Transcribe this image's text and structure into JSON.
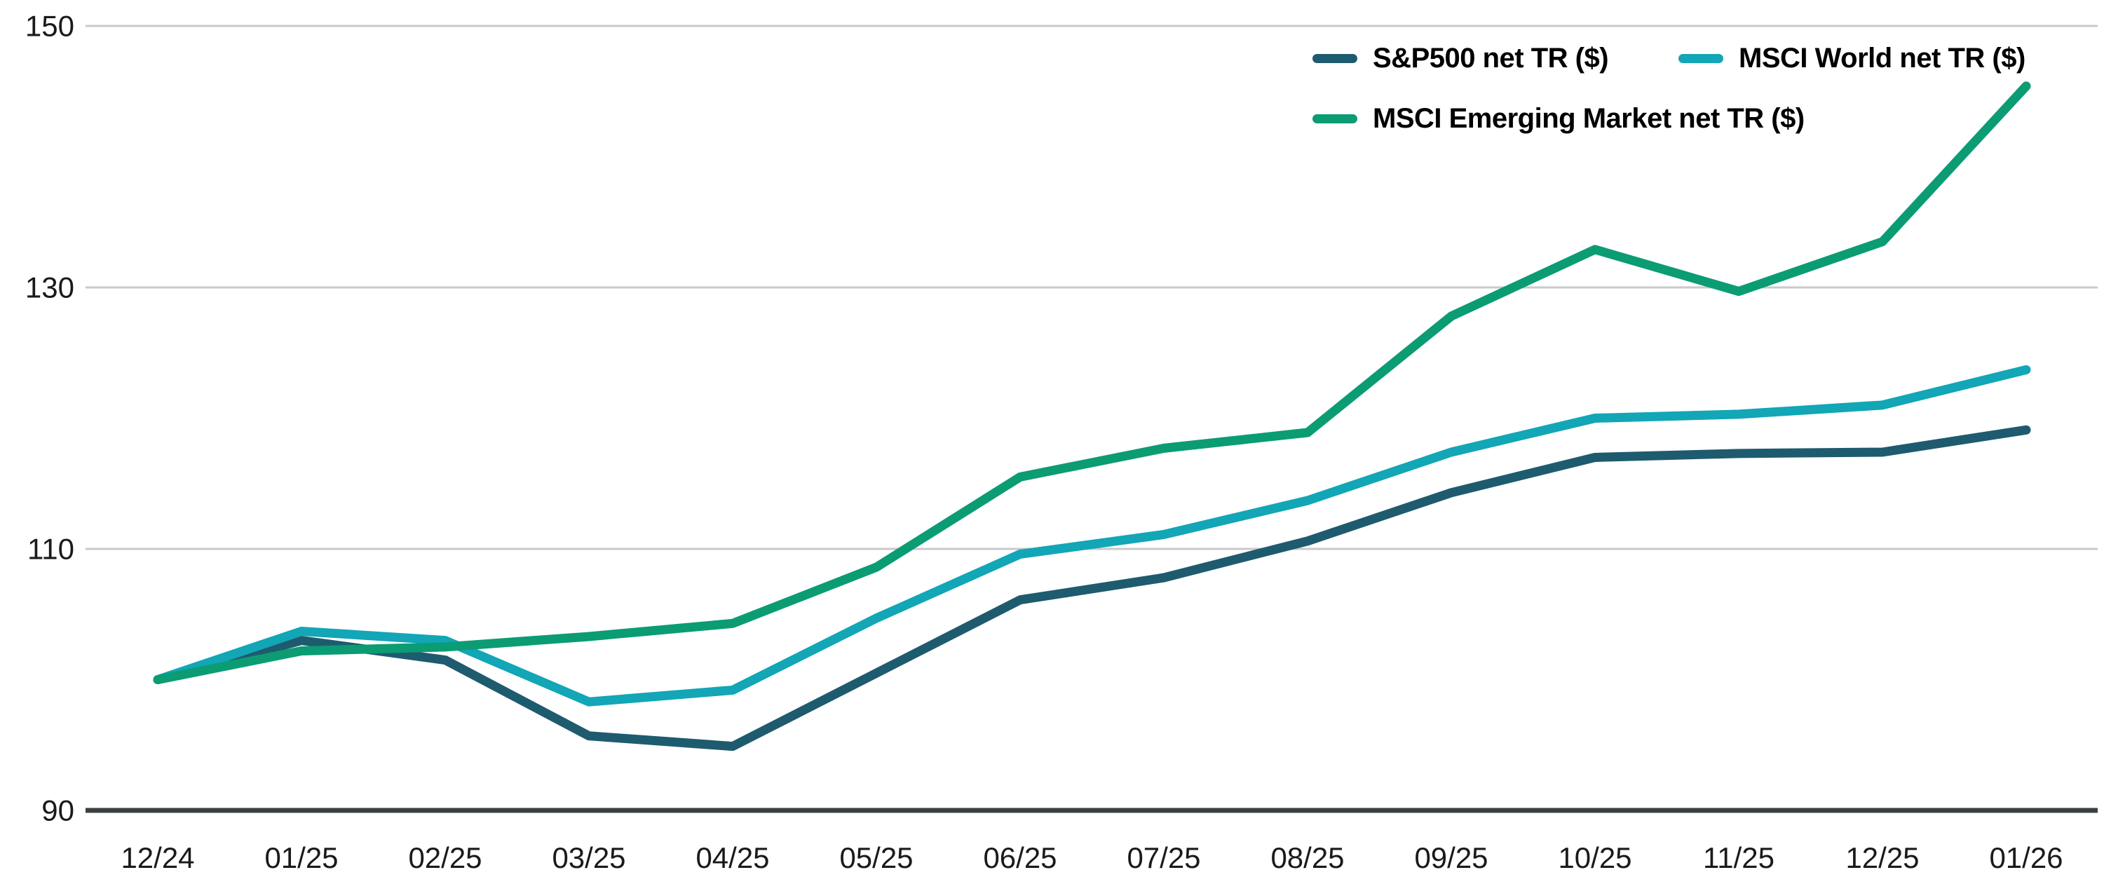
{
  "chart_data": {
    "type": "line",
    "title": "",
    "categories": [
      "12/24",
      "01/25",
      "02/25",
      "03/25",
      "04/25",
      "05/25",
      "06/25",
      "07/25",
      "08/25",
      "09/25",
      "10/25",
      "11/25",
      "12/25",
      "01/26"
    ],
    "series": [
      {
        "name": "S&P500 net TR ($)",
        "color": "#1e5b6f",
        "values": [
          100,
          103.0,
          101.5,
          95.7,
          94.9,
          100.5,
          106.1,
          107.8,
          110.6,
          114.3,
          117.0,
          117.3,
          117.4,
          119.1
        ]
      },
      {
        "name": "MSCI World net TR ($)",
        "color": "#12a6b6",
        "values": [
          100,
          103.7,
          103.0,
          98.3,
          99.2,
          104.7,
          109.6,
          111.1,
          113.7,
          117.4,
          120.0,
          120.3,
          121.0,
          123.7
        ]
      },
      {
        "name": "MSCI Emerging Market net TR ($)",
        "color": "#0b9c74",
        "values": [
          100,
          102.2,
          102.5,
          103.3,
          104.3,
          108.6,
          115.5,
          117.7,
          118.9,
          127.8,
          132.9,
          129.7,
          133.5,
          145.4
        ]
      }
    ],
    "ylim": [
      90,
      150
    ],
    "yticks": [
      90,
      110,
      130,
      150
    ],
    "xlabel": "",
    "ylabel": "",
    "grid": "horizontal",
    "legend_position": "top-right",
    "axis_line_color": "#3b4043",
    "gridline_color": "#c9c9c9",
    "tick_label_color": "#1a1a1a",
    "background_color": "#ffffff"
  }
}
